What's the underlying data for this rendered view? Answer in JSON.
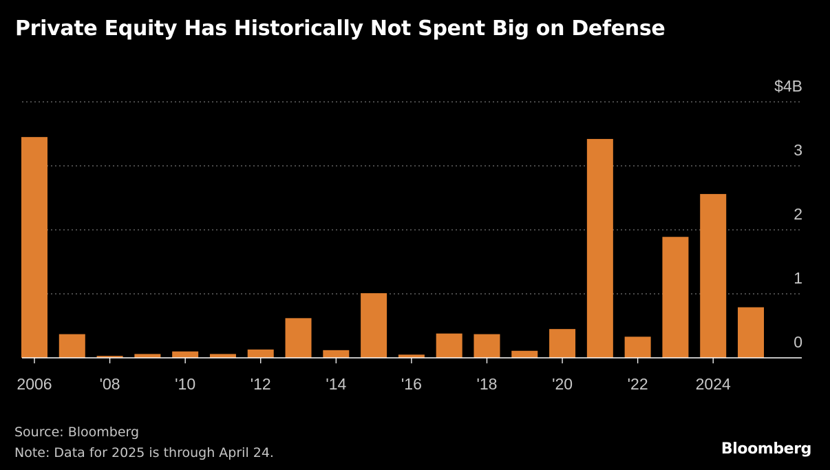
{
  "title": "Private Equity Has Historically Not Spent Big on Defense",
  "source": "Source: Bloomberg",
  "note": "Note: Data for 2025 is through April 24.",
  "brand": "Bloomberg",
  "colors": {
    "background": "#000000",
    "bar": "#e07f30",
    "grid": "#777777",
    "axis": "#ffffff",
    "text": "#c8c8c8"
  },
  "chart_data": {
    "type": "bar",
    "title": "Private Equity Has Historically Not Spent Big on Defense",
    "xlabel": "",
    "ylabel": "",
    "unit": "$B",
    "categories": [
      "2006",
      "2007",
      "2008",
      "2009",
      "2010",
      "2011",
      "2012",
      "2013",
      "2014",
      "2015",
      "2016",
      "2017",
      "2018",
      "2019",
      "2020",
      "2021",
      "2022",
      "2023",
      "2024",
      "2025"
    ],
    "values": [
      3.45,
      0.37,
      0.03,
      0.06,
      0.1,
      0.06,
      0.13,
      0.62,
      0.12,
      1.01,
      0.05,
      0.38,
      0.37,
      0.11,
      0.45,
      3.42,
      0.33,
      1.89,
      2.56,
      0.79
    ],
    "ylim": [
      0,
      4
    ],
    "yticks": [
      0,
      1,
      2,
      3,
      4
    ],
    "ytick_labels": [
      "0",
      "1",
      "2",
      "3",
      "$4B"
    ],
    "xtick_labels": [
      {
        "year": "2006",
        "label": "2006"
      },
      {
        "year": "2008",
        "label": "'08"
      },
      {
        "year": "2010",
        "label": "'10"
      },
      {
        "year": "2012",
        "label": "'12"
      },
      {
        "year": "2014",
        "label": "'14"
      },
      {
        "year": "2016",
        "label": "'16"
      },
      {
        "year": "2018",
        "label": "'18"
      },
      {
        "year": "2020",
        "label": "'20"
      },
      {
        "year": "2022",
        "label": "'22"
      },
      {
        "year": "2024",
        "label": "2024"
      }
    ],
    "grid": true,
    "legend": "none"
  }
}
